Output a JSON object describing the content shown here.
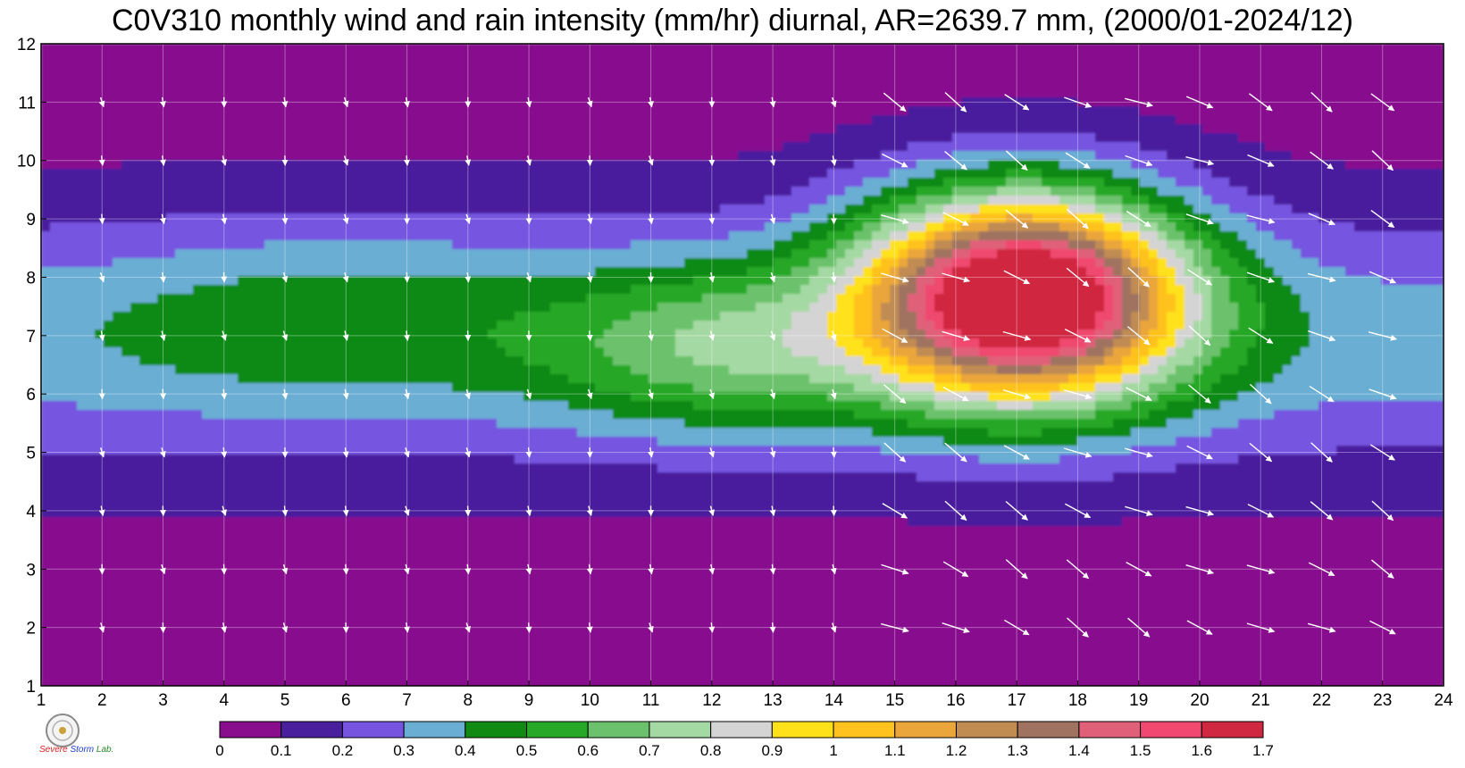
{
  "title": "C0V310 monthly wind and rain intensity (mm/hr) diurnal, AR=2639.7 mm, (2000/01-2024/12)",
  "logo": {
    "text1": "Severe",
    "text2": "Storm",
    "text3": "Lab."
  },
  "chart_data": {
    "type": "heatmap",
    "title": "C0V310 monthly wind and rain intensity (mm/hr) diurnal, AR=2639.7 mm, (2000/01-2024/12)",
    "x_ticks": [
      "1",
      "2",
      "3",
      "4",
      "5",
      "6",
      "7",
      "8",
      "9",
      "10",
      "11",
      "12",
      "13",
      "14",
      "15",
      "16",
      "17",
      "18",
      "19",
      "20",
      "21",
      "22",
      "23",
      "24"
    ],
    "y_ticks": [
      "1",
      "2",
      "3",
      "4",
      "5",
      "6",
      "7",
      "8",
      "9",
      "10",
      "11",
      "12"
    ],
    "xlim": [
      1,
      24
    ],
    "ylim": [
      1,
      12
    ],
    "colorbar_levels": [
      "0",
      "0.1",
      "0.2",
      "0.3",
      "0.4",
      "0.5",
      "0.6",
      "0.7",
      "0.8",
      "0.9",
      "1",
      "1.1",
      "1.2",
      "1.3",
      "1.4",
      "1.5",
      "1.6",
      "1.7"
    ],
    "colorbar_colors": [
      "#880e8e",
      "#4a1f9e",
      "#7654e0",
      "#6aaed4",
      "#108a12",
      "#27a827",
      "#6cc26c",
      "#a5d9a3",
      "#d4d4d4",
      "#ffe11a",
      "#ffc21e",
      "#eaa63a",
      "#c08c52",
      "#9f7360",
      "#e0607a",
      "#f04870",
      "#d02840"
    ],
    "peak": {
      "x": 17,
      "y": 7.8,
      "value": 1.6
    },
    "grid": true,
    "arrows": "white wind vectors"
  }
}
